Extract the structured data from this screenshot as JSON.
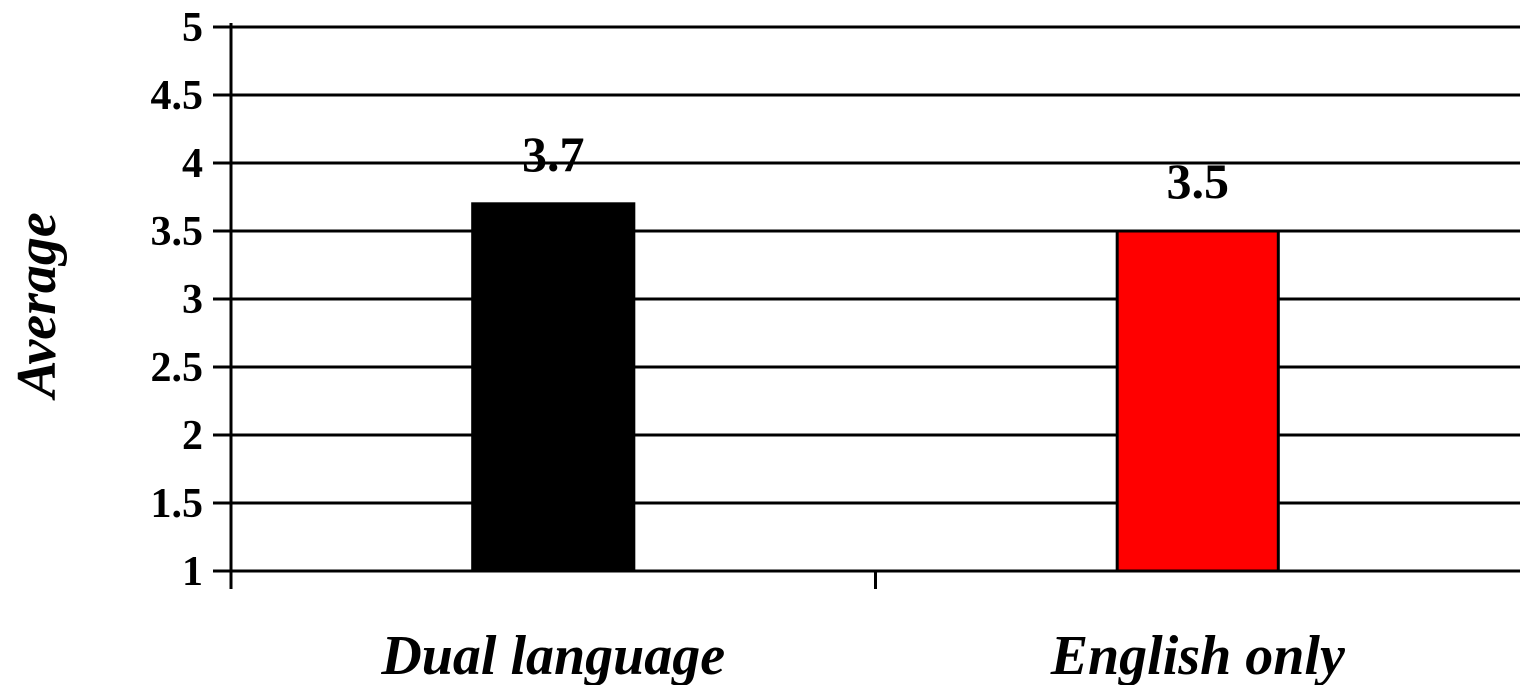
{
  "chart_data": {
    "type": "bar",
    "categories": [
      "Dual language",
      "English only"
    ],
    "values": [
      3.7,
      3.5
    ],
    "data_labels": [
      "3.7",
      "3.5"
    ],
    "bar_colors": [
      "#000000",
      "#ff0000"
    ],
    "title": "",
    "xlabel": "",
    "ylabel": "Average",
    "ylim": [
      1,
      5
    ],
    "yticks": [
      1,
      1.5,
      2,
      2.5,
      3,
      3.5,
      4,
      4.5,
      5
    ],
    "ytick_labels": [
      "1",
      "1.5",
      "2",
      "2.5",
      "3",
      "3.5",
      "4",
      "4.5",
      "5"
    ],
    "grid": true,
    "legend": "none"
  }
}
